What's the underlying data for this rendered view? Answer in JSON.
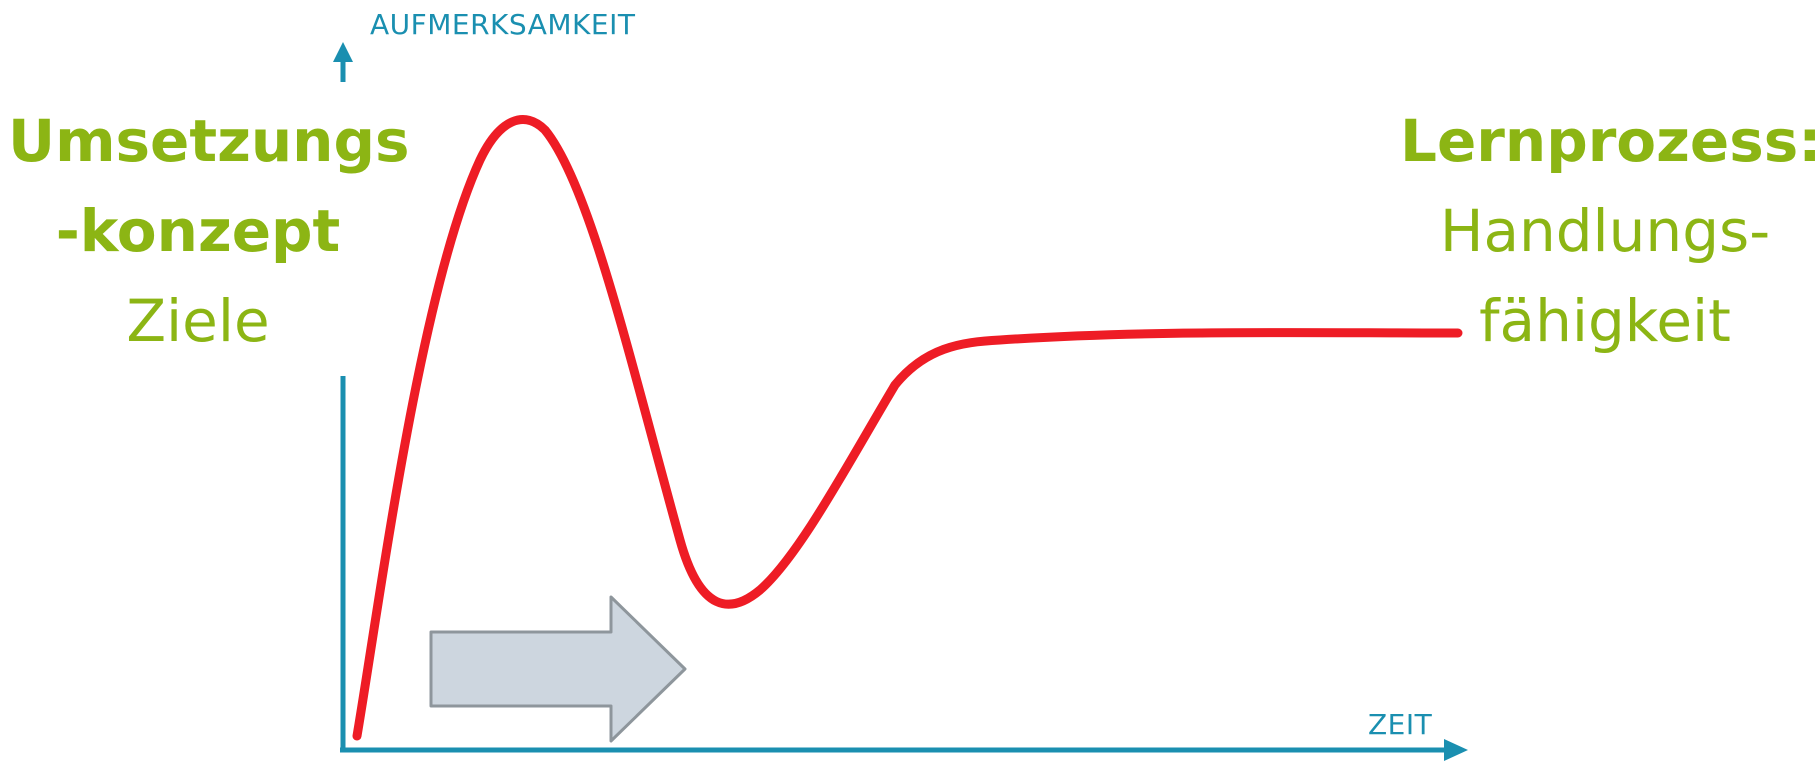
{
  "colors": {
    "axis": "#1a8fb0",
    "curve": "#ee1c25",
    "text_green": "#8cb514",
    "arrow_fill": "#cdd6df",
    "arrow_stroke": "#8e969c"
  },
  "axes": {
    "y_label": "AUFMERKSAMKEIT",
    "x_label": "ZEIT"
  },
  "left_block": {
    "line1": "Umsetzungs",
    "line2": "-konzept",
    "line3": "Ziele"
  },
  "right_block": {
    "line1": "Lernprozess:",
    "line2": "Handlungs-",
    "line3": "fähigkeit"
  },
  "icons": {
    "progress_arrow": "right-arrow-icon"
  }
}
